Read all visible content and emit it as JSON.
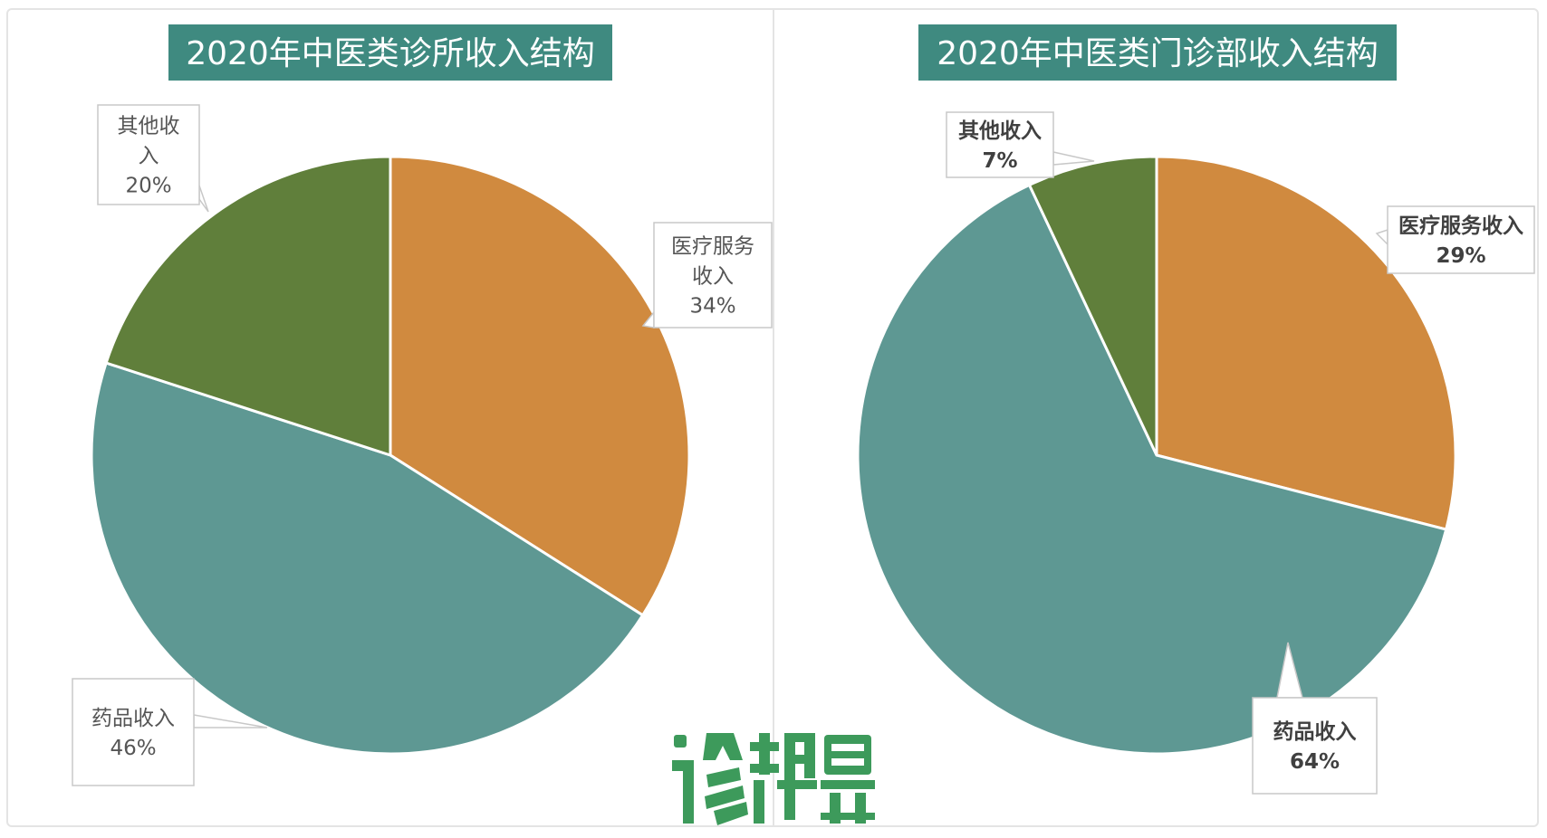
{
  "chart_data": [
    {
      "type": "pie",
      "title": "2020年中医类诊所收入结构",
      "slices": [
        {
          "label_lines": [
            "医疗服务",
            "收入"
          ],
          "value": 34,
          "value_label": "34%",
          "color": "#d08a3f"
        },
        {
          "label_lines": [
            "药品收入"
          ],
          "value": 46,
          "value_label": "46%",
          "color": "#5e9893"
        },
        {
          "label_lines": [
            "其他收",
            "入"
          ],
          "value": 20,
          "value_label": "20%",
          "color": "#607f3b"
        }
      ]
    },
    {
      "type": "pie",
      "title": "2020年中医类门诊部收入结构",
      "slices": [
        {
          "label_lines": [
            "医疗服务收入"
          ],
          "value": 29,
          "value_label": "29%",
          "color": "#d08a3f"
        },
        {
          "label_lines": [
            "药品收入"
          ],
          "value": 64,
          "value_label": "64%",
          "color": "#5e9893"
        },
        {
          "label_lines": [
            "其他收入"
          ],
          "value": 7,
          "value_label": "7%",
          "color": "#607f3b"
        }
      ]
    }
  ],
  "title_color": "#3f8a80",
  "watermark": "诊锁界"
}
